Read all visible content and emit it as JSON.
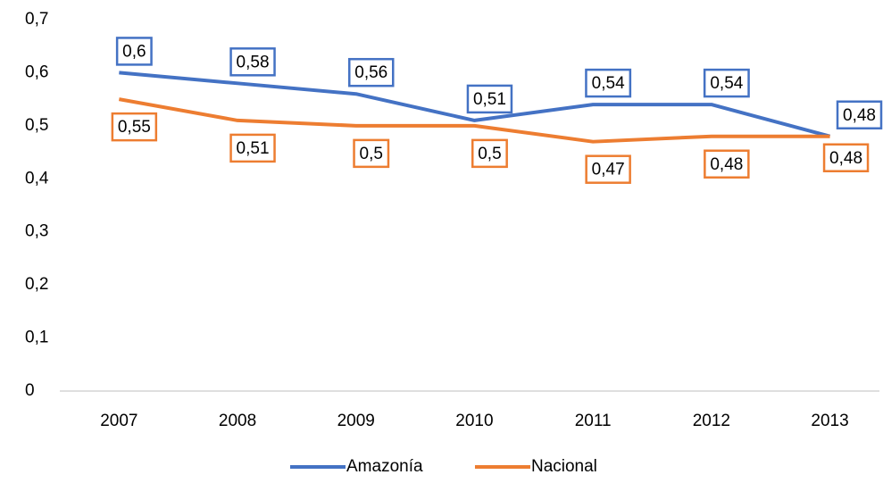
{
  "chart_data": {
    "type": "line",
    "categories": [
      "2007",
      "2008",
      "2009",
      "2010",
      "2011",
      "2012",
      "2013"
    ],
    "series": [
      {
        "name": "Amazonía",
        "color": "#4472c4",
        "values": [
          0.6,
          0.58,
          0.56,
          0.51,
          0.54,
          0.54,
          0.48
        ],
        "value_labels": [
          "0,6",
          "0,58",
          "0,56",
          "0,51",
          "0,54",
          "0,54",
          "0,48"
        ]
      },
      {
        "name": "Nacional",
        "color": "#ed7d31",
        "values": [
          0.55,
          0.51,
          0.5,
          0.5,
          0.47,
          0.48,
          0.48
        ],
        "value_labels": [
          "0,55",
          "0,51",
          "0,5",
          "0,5",
          "0,47",
          "0,48",
          "0,48"
        ]
      }
    ],
    "ylim": [
      0,
      0.7
    ],
    "yticks": [
      0,
      {
        "value": 0.1,
        "label": "0,1"
      },
      {
        "value": 0.2,
        "label": "0,2"
      },
      {
        "value": 0.3,
        "label": "0,3"
      },
      {
        "value": 0.4,
        "label": "0,4"
      },
      {
        "value": 0.5,
        "label": "0,5"
      },
      {
        "value": 0.6,
        "label": "0,6"
      },
      {
        "value": 0.7,
        "label": "0,7"
      }
    ],
    "grid": false,
    "legend": "bottom"
  }
}
